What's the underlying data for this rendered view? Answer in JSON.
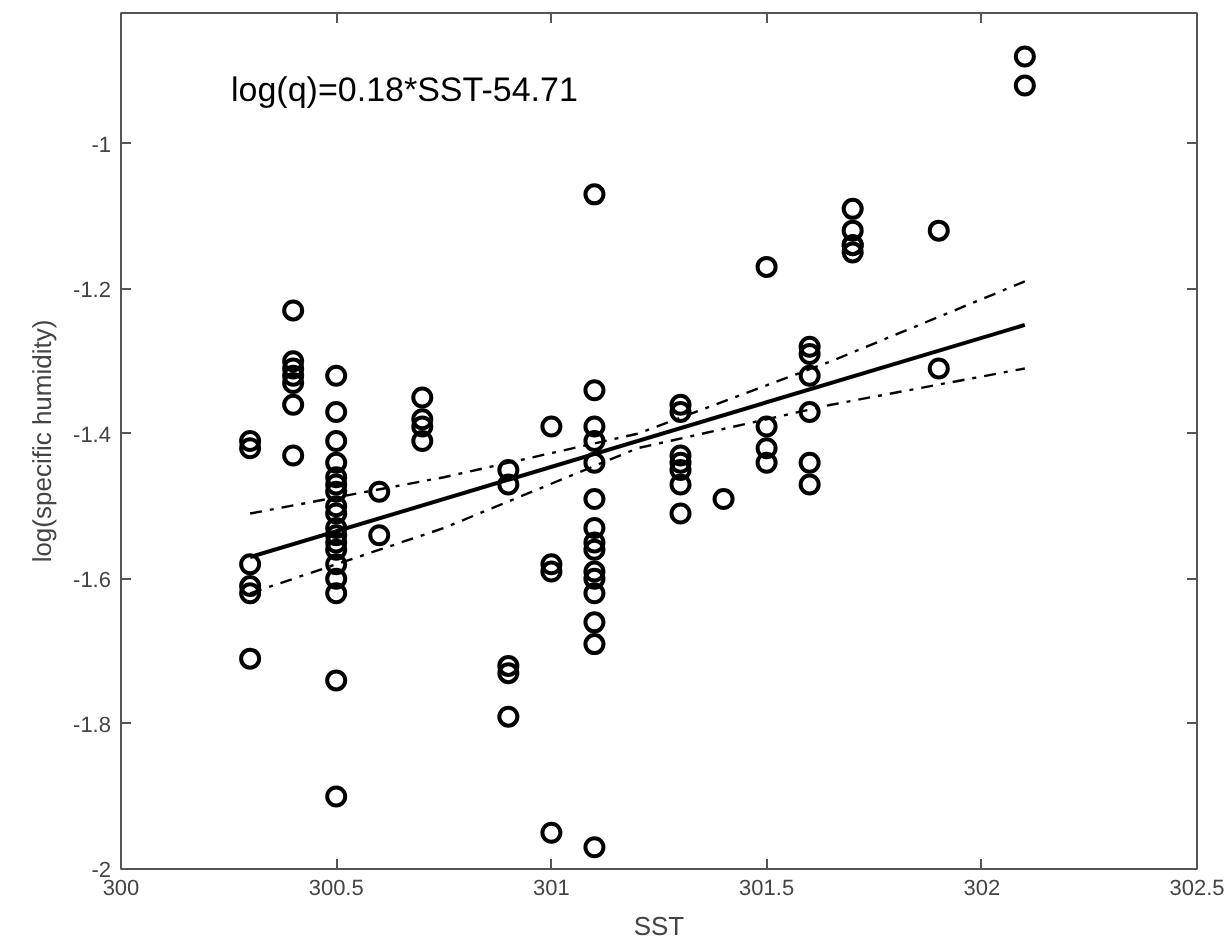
{
  "chart_data": {
    "type": "scatter",
    "xlabel": "SST",
    "ylabel": "log(specific humidity)",
    "annotations": [
      "log(q)=0.18*SST-54.71"
    ],
    "xlim": [
      300,
      302.5
    ],
    "xticks": [
      300,
      300.5,
      301,
      301.5,
      302,
      302.5
    ],
    "ylim": [
      -2,
      -0.82
    ],
    "yticks": [
      -2,
      -1.8,
      -1.6,
      -1.4,
      -1.2,
      -1
    ],
    "grid": false,
    "series": [
      {
        "marker": "circle",
        "color": "#000000",
        "x": [
          300.3,
          300.3,
          300.3,
          300.3,
          300.3,
          300.3,
          300.4,
          300.4,
          300.4,
          300.4,
          300.4,
          300.4,
          300.4,
          300.5,
          300.5,
          300.5,
          300.5,
          300.5,
          300.5,
          300.5,
          300.5,
          300.5,
          300.5,
          300.5,
          300.5,
          300.5,
          300.5,
          300.5,
          300.5,
          300.5,
          300.5,
          300.6,
          300.6,
          300.7,
          300.7,
          300.7,
          300.7,
          300.9,
          300.9,
          300.9,
          300.9,
          300.9,
          301,
          301,
          301,
          301,
          301.1,
          301.1,
          301.1,
          301.1,
          301.1,
          301.1,
          301.1,
          301.1,
          301.1,
          301.1,
          301.1,
          301.1,
          301.1,
          301.1,
          301.1,
          301.3,
          301.3,
          301.3,
          301.3,
          301.3,
          301.3,
          301.3,
          301.4,
          301.5,
          301.5,
          301.5,
          301.5,
          301.6,
          301.6,
          301.6,
          301.6,
          301.6,
          301.6,
          301.7,
          301.7,
          301.7,
          301.7,
          301.7,
          301.9,
          301.9,
          302.1,
          302.1
        ],
        "values": [
          -1.41,
          -1.42,
          -1.58,
          -1.61,
          -1.62,
          -1.71,
          -1.23,
          -1.3,
          -1.31,
          -1.32,
          -1.33,
          -1.36,
          -1.43,
          -1.32,
          -1.37,
          -1.41,
          -1.44,
          -1.46,
          -1.47,
          -1.48,
          -1.5,
          -1.51,
          -1.53,
          -1.54,
          -1.55,
          -1.58,
          -1.6,
          -1.62,
          -1.74,
          -1.9,
          -1.56,
          -1.48,
          -1.54,
          -1.35,
          -1.38,
          -1.39,
          -1.41,
          -1.45,
          -1.47,
          -1.72,
          -1.73,
          -1.79,
          -1.39,
          -1.58,
          -1.59,
          -1.95,
          -1.07,
          -1.34,
          -1.39,
          -1.41,
          -1.44,
          -1.49,
          -1.53,
          -1.55,
          -1.56,
          -1.59,
          -1.6,
          -1.62,
          -1.66,
          -1.69,
          -1.97,
          -1.36,
          -1.37,
          -1.43,
          -1.44,
          -1.45,
          -1.47,
          -1.51,
          -1.49,
          -1.17,
          -1.39,
          -1.42,
          -1.44,
          -1.28,
          -1.29,
          -1.32,
          -1.37,
          -1.44,
          -1.47,
          -1.09,
          -1.12,
          -1.14,
          -1.14,
          -1.15,
          -1.12,
          -1.31,
          -0.88,
          -0.92
        ]
      },
      {
        "type": "line",
        "color": "#000000",
        "line_style": "solid",
        "x": [
          300.3,
          302.1
        ],
        "values": [
          -1.57,
          -1.25
        ]
      },
      {
        "type": "line",
        "color": "#000000",
        "line_style": "dashdot",
        "x": [
          300.3,
          300.75,
          301.2,
          301.65,
          302.1
        ],
        "values": [
          -1.51,
          -1.46,
          -1.4,
          -1.3,
          -1.19
        ]
      },
      {
        "type": "line",
        "color": "#000000",
        "line_style": "dashdot",
        "x": [
          300.3,
          300.75,
          301.2,
          301.65,
          302.1
        ],
        "values": [
          -1.62,
          -1.53,
          -1.42,
          -1.36,
          -1.31
        ]
      }
    ]
  }
}
